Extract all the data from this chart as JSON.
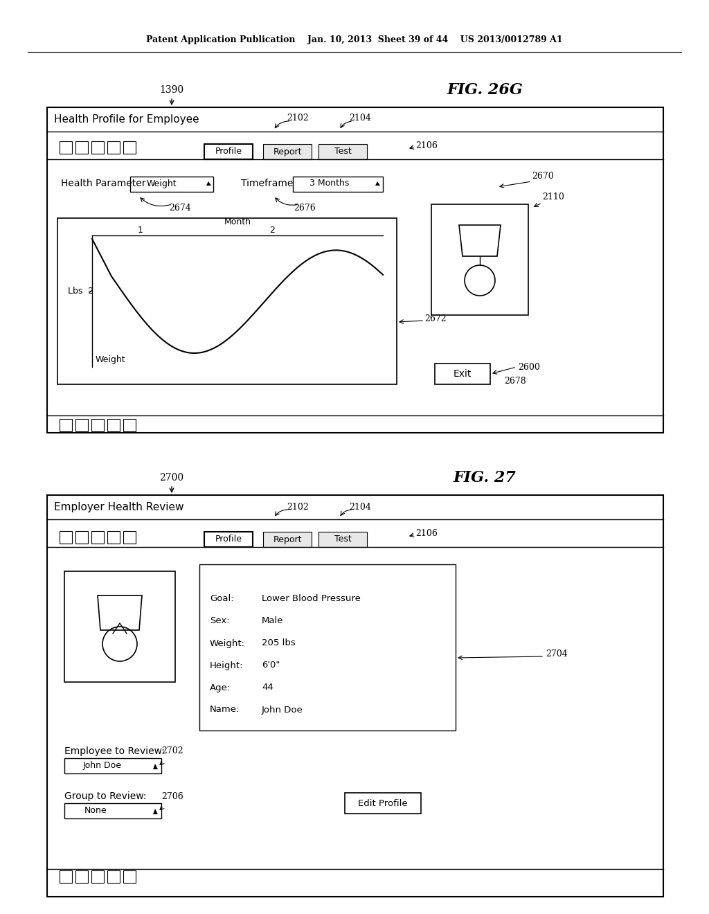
{
  "bg_color": "#ffffff",
  "header_text": "Patent Application Publication    Jan. 10, 2013  Sheet 39 of 44    US 2013/0012789 A1",
  "fig1_label": "1390",
  "fig1_title": "FIG. 26G",
  "fig1_window_title": "Health Profile for Employee",
  "fig1_tab1": "Profile",
  "fig1_tab2": "Report",
  "fig1_tab3": "Test",
  "fig1_label_2102": "2102",
  "fig1_label_2104": "2104",
  "fig1_label_2106": "2106",
  "fig1_health_param_label": "Health Parameter",
  "fig1_health_param_value": "Weight",
  "fig1_timeframe_label": "Timeframe",
  "fig1_timeframe_value": "3 Months",
  "fig1_label_2674": "2674",
  "fig1_label_2676": "2676",
  "fig1_chart_ylabel_top": "Weight",
  "fig1_chart_ylabel": "Lbs  2",
  "fig1_chart_xlabel": "Month",
  "fig1_chart_x1": "1",
  "fig1_chart_x2": "2",
  "fig1_label_2110": "2110",
  "fig1_label_2670": "2670",
  "fig1_label_2672": "2672",
  "fig1_label_2600": "2600",
  "fig1_exit_btn": "Exit",
  "fig1_label_2678": "2678",
  "fig2_label": "2700",
  "fig2_title": "FIG. 27",
  "fig2_window_title": "Employer Health Review",
  "fig2_tab1": "Profile",
  "fig2_tab2": "Report",
  "fig2_tab3": "Test",
  "fig2_label_2102": "2102",
  "fig2_label_2104": "2104",
  "fig2_label_2106": "2106",
  "fig2_name_label": "Name:",
  "fig2_name_value": "John Doe",
  "fig2_age_label": "Age:",
  "fig2_age_value": "44",
  "fig2_height_label": "Height:",
  "fig2_height_value": "6'0\"",
  "fig2_weight_label": "Weight:",
  "fig2_weight_value": "205 lbs",
  "fig2_sex_label": "Sex:",
  "fig2_sex_value": "Male",
  "fig2_goal_label": "Goal:",
  "fig2_goal_value": "Lower Blood Pressure",
  "fig2_employee_label": "Employee to Review:",
  "fig2_employee_value": "John Doe",
  "fig2_label_2702": "2702",
  "fig2_group_label": "Group to Review:",
  "fig2_group_value": "None",
  "fig2_label_2706": "2706",
  "fig2_label_2704": "2704",
  "fig2_edit_btn": "Edit Profile"
}
